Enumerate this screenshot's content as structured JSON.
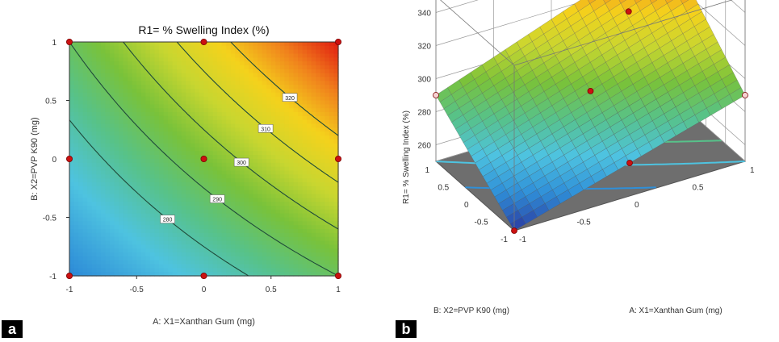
{
  "chart_data": [
    {
      "type": "heatmap",
      "subtype": "contour",
      "title": "R1= % Swelling Index (%)",
      "xlabel": "A: X1=Xanthan Gum (mg)",
      "ylabel": "B: X2=PVP K90 (mg)",
      "xlim": [
        -1,
        1
      ],
      "ylim": [
        -1,
        1
      ],
      "x_ticks": [
        "-1",
        "-0.5",
        "0",
        "0.5",
        "1"
      ],
      "y_ticks": [
        "-1",
        "-0.5",
        "0",
        "0.5",
        "1"
      ],
      "contour_levels": [
        {
          "label": "280",
          "value": 280
        },
        {
          "label": "290",
          "value": 290
        },
        {
          "label": "300",
          "value": 300
        },
        {
          "label": "310",
          "value": 310
        },
        {
          "label": "320",
          "value": 320
        }
      ],
      "design_points": [
        {
          "x": -1,
          "y": -1
        },
        {
          "x": 0,
          "y": -1
        },
        {
          "x": 1,
          "y": -1
        },
        {
          "x": -1,
          "y": 0
        },
        {
          "x": 0,
          "y": 0
        },
        {
          "x": 1,
          "y": 0
        },
        {
          "x": -1,
          "y": 1
        },
        {
          "x": 0,
          "y": 1
        },
        {
          "x": 1,
          "y": 1
        }
      ],
      "colormap": [
        "#2a3aa0",
        "#2f8fd8",
        "#4ec3e0",
        "#57c28a",
        "#79c23a",
        "#c8d630",
        "#f4d21c",
        "#f0801c",
        "#e01a10"
      ],
      "panel_label": "a"
    },
    {
      "type": "surface",
      "ylabel": "R1= % Swelling Index (%)",
      "xlabel": "A: X1=Xanthan Gum (mg)",
      "zlabel_axis2": "B: X2=PVP K90 (mg)",
      "zlim": [
        250,
        340
      ],
      "z_ticks": [
        "260",
        "280",
        "300",
        "320",
        "340"
      ],
      "a_ticks": [
        "-1",
        "-0.5",
        "0",
        "0.5",
        "1"
      ],
      "b_ticks": [
        "1",
        "0.5",
        "0",
        "-0.5",
        "-1"
      ],
      "surface_corners": {
        "a-1_b-1": 250,
        "a1_b-1": 290,
        "a-1_b1": 290,
        "a1_b1": 340
      },
      "panel_label": "b"
    }
  ]
}
